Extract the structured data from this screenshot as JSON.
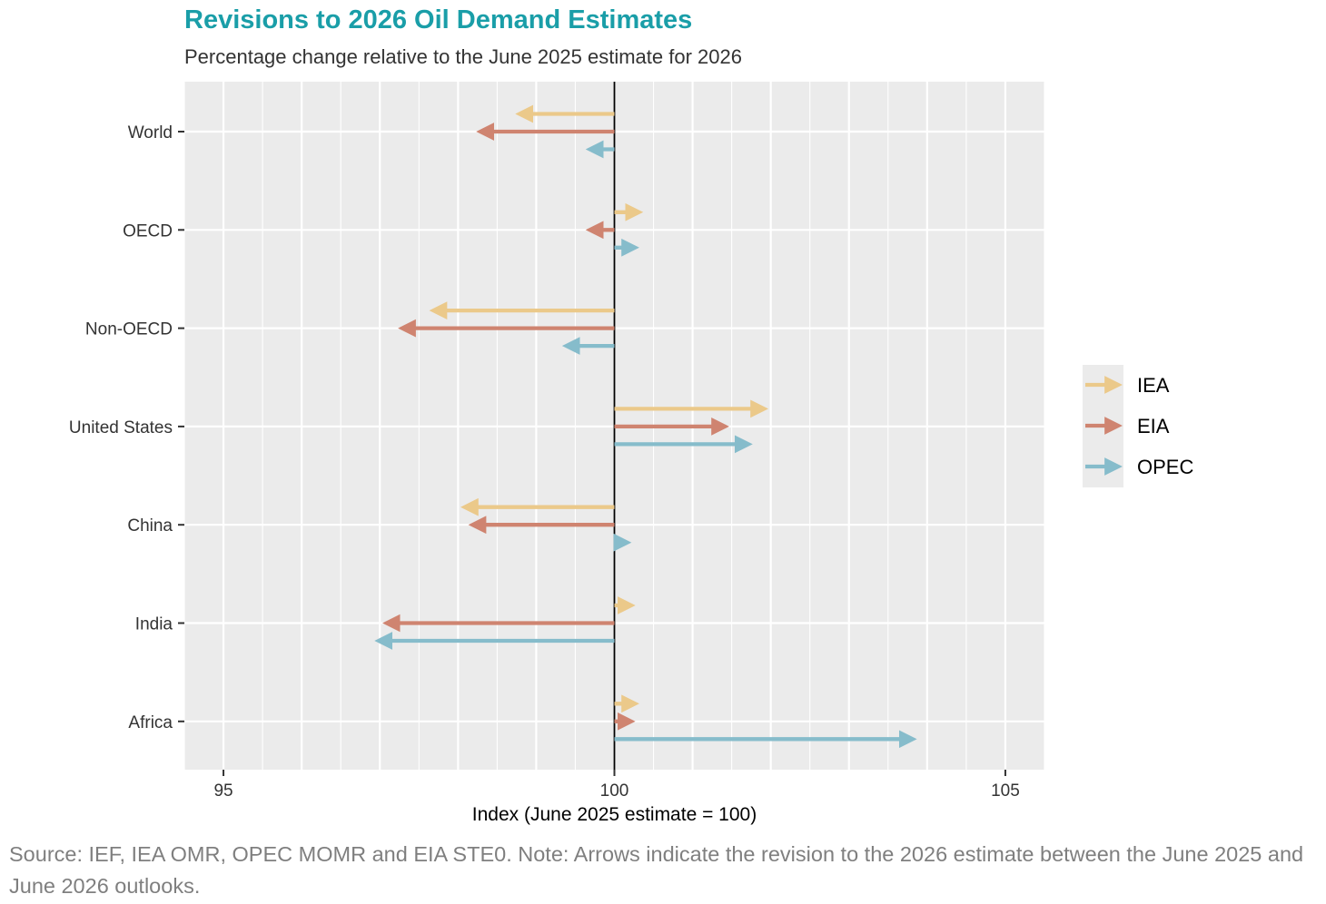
{
  "title": "Revisions to 2026 Oil Demand Estimates",
  "subtitle": "Percentage change relative to the June 2025 estimate for 2026",
  "source": "Source: IEF, IEA OMR, OPEC MOMR and EIA STE0. Note: Arrows indicate the revision to the 2026 estimate between the June 2025 and June 2026 outlooks.",
  "colors": {
    "IEA": "#ebc98a",
    "EIA": "#cf8470",
    "OPEC": "#86bccb",
    "panel": "#ebebeb",
    "grid": "#ffffff",
    "axis_line": "#000000"
  },
  "chart_data": {
    "type": "arrow",
    "xlabel": "Index (June 2025 estimate = 100)",
    "ylabel": "",
    "xlim": [
      94.5,
      105.5
    ],
    "x_ticks": [
      95,
      100,
      105
    ],
    "reference_line": 100,
    "grid": true,
    "legend_position": "right",
    "categories": [
      "World",
      "OECD",
      "Non-OECD",
      "United States",
      "China",
      "India",
      "Africa"
    ],
    "series": [
      {
        "name": "IEA",
        "start": 100,
        "values": [
          98.8,
          100.3,
          97.7,
          101.9,
          98.1,
          100.2,
          100.25
        ]
      },
      {
        "name": "EIA",
        "start": 100,
        "values": [
          98.3,
          99.7,
          97.3,
          101.4,
          98.2,
          97.1,
          100.2
        ]
      },
      {
        "name": "OPEC",
        "start": 100,
        "values": [
          99.7,
          100.25,
          99.4,
          101.7,
          100.15,
          97.0,
          103.8
        ]
      }
    ]
  }
}
